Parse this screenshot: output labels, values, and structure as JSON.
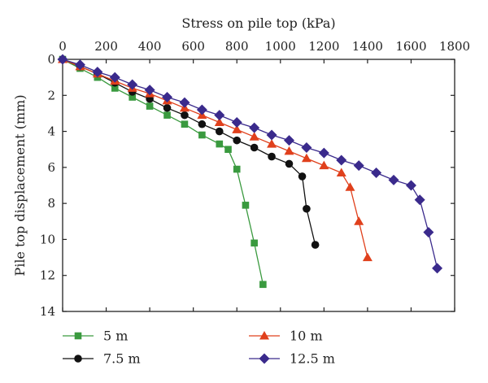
{
  "chart_data": {
    "type": "line",
    "xlabel": "Stress on pile top (kPa)",
    "ylabel": "Pile top displacement (mm)",
    "xlim": [
      0,
      1800
    ],
    "ylim": [
      0,
      14
    ],
    "y_inverted": true,
    "x_axis_position": "top",
    "x_ticks": [
      0,
      200,
      400,
      600,
      800,
      1000,
      1200,
      1400,
      1600,
      1800
    ],
    "y_ticks": [
      0,
      2,
      4,
      6,
      8,
      10,
      12,
      14
    ],
    "grid": false,
    "legend_position": "bottom",
    "series": [
      {
        "name": "5 m",
        "color": "#3a9a3f",
        "marker": "square",
        "x": [
          0,
          80,
          160,
          240,
          320,
          400,
          480,
          560,
          640,
          720,
          760,
          800,
          840,
          880,
          920
        ],
        "y": [
          0,
          0.5,
          1.0,
          1.6,
          2.1,
          2.6,
          3.1,
          3.6,
          4.2,
          4.7,
          5.0,
          6.1,
          8.1,
          10.2,
          12.5
        ]
      },
      {
        "name": "7.5 m",
        "color": "#111111",
        "marker": "circle",
        "x": [
          0,
          80,
          160,
          240,
          320,
          400,
          480,
          560,
          640,
          720,
          800,
          880,
          960,
          1040,
          1100,
          1120,
          1160
        ],
        "y": [
          0,
          0.4,
          0.8,
          1.3,
          1.8,
          2.2,
          2.7,
          3.1,
          3.6,
          4.0,
          4.5,
          4.9,
          5.4,
          5.8,
          6.5,
          8.3,
          10.3
        ]
      },
      {
        "name": "10 m",
        "color": "#e0401c",
        "marker": "triangle",
        "x": [
          0,
          80,
          160,
          240,
          320,
          400,
          480,
          560,
          640,
          720,
          800,
          880,
          960,
          1040,
          1120,
          1200,
          1280,
          1320,
          1360,
          1400
        ],
        "y": [
          0,
          0.4,
          0.8,
          1.2,
          1.6,
          1.9,
          2.3,
          2.7,
          3.1,
          3.5,
          3.9,
          4.3,
          4.7,
          5.1,
          5.5,
          5.9,
          6.3,
          7.1,
          9.0,
          11.0
        ]
      },
      {
        "name": "12.5 m",
        "color": "#3a2a8c",
        "marker": "diamond",
        "x": [
          0,
          80,
          160,
          240,
          320,
          400,
          480,
          560,
          640,
          720,
          800,
          880,
          960,
          1040,
          1120,
          1200,
          1280,
          1360,
          1440,
          1520,
          1600,
          1640,
          1680,
          1720
        ],
        "y": [
          0,
          0.3,
          0.7,
          1.0,
          1.4,
          1.7,
          2.1,
          2.4,
          2.8,
          3.1,
          3.5,
          3.8,
          4.2,
          4.5,
          4.9,
          5.2,
          5.6,
          5.9,
          6.3,
          6.7,
          7.0,
          7.8,
          9.6,
          11.6
        ]
      }
    ]
  }
}
